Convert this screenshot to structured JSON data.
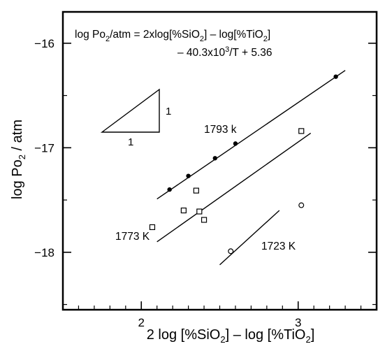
{
  "chart_data": {
    "type": "scatter",
    "title": "",
    "equation": {
      "line1": {
        "a": "log Po",
        "sub1": "2",
        "b": "/atm = 2xlog[%SiO",
        "sub2": "2",
        "c": "] – log[%TiO",
        "sub3": "2",
        "d": "]"
      },
      "line2": {
        "a": "– 40.3x10",
        "sup1": "3",
        "b": "/T + 5.36"
      }
    },
    "xlabel": {
      "a": "2 log [%SiO",
      "sub1": "2",
      "b": "] – log [%TiO",
      "sub2": "2",
      "c": "]"
    },
    "ylabel": {
      "a": "log Po",
      "sub1": "2",
      "b": " / atm"
    },
    "xlim": [
      1.5,
      3.5
    ],
    "ylim": [
      -18.55,
      -15.7
    ],
    "x_ticks": [
      {
        "value": 2,
        "label": "2"
      },
      {
        "value": 3,
        "label": "3"
      }
    ],
    "x_minor_ticks": [
      1.6,
      1.7,
      1.8,
      1.9,
      2.1,
      2.2,
      2.3,
      2.4,
      2.5,
      2.6,
      2.7,
      2.8,
      2.9,
      3.1,
      3.2,
      3.3,
      3.4
    ],
    "y_ticks": [
      {
        "value": -16,
        "label": "−16"
      },
      {
        "value": -17,
        "label": "−17"
      },
      {
        "value": -18,
        "label": "−18"
      }
    ],
    "y_minor_ticks": [
      -18.5,
      -17.5,
      -16.5
    ],
    "grid": false,
    "slope_triangle": {
      "run_label": "1",
      "rise_label": "1"
    },
    "series": [
      {
        "name": "1793 K",
        "label": "1793 k",
        "marker": "filled-circle",
        "points": [
          [
            2.18,
            -17.4
          ],
          [
            2.3,
            -17.27
          ],
          [
            2.47,
            -17.1
          ],
          [
            2.6,
            -16.96
          ],
          [
            3.24,
            -16.32
          ]
        ],
        "fit_line": [
          [
            2.1,
            -17.49
          ],
          [
            3.3,
            -16.26
          ]
        ]
      },
      {
        "name": "1773 K",
        "label": "1773 K",
        "marker": "open-square",
        "points": [
          [
            2.07,
            -17.76
          ],
          [
            2.27,
            -17.6
          ],
          [
            2.35,
            -17.41
          ],
          [
            2.37,
            -17.61
          ],
          [
            2.4,
            -17.69
          ],
          [
            3.02,
            -16.84
          ]
        ],
        "fit_line": [
          [
            2.1,
            -17.9
          ],
          [
            3.08,
            -16.86
          ]
        ]
      },
      {
        "name": "1723 K",
        "label": "1723 K",
        "marker": "open-circle",
        "points": [
          [
            2.57,
            -17.99
          ],
          [
            3.02,
            -17.55
          ]
        ],
        "fit_line": [
          [
            2.5,
            -18.12
          ],
          [
            2.88,
            -17.6
          ]
        ]
      }
    ]
  }
}
